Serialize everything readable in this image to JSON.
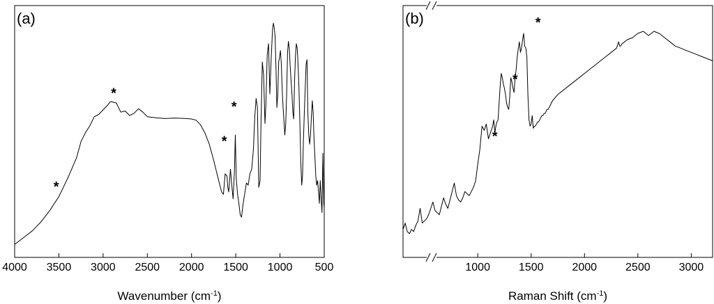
{
  "chart_data": [
    {
      "type": "line",
      "panel_label": "(a)",
      "xlabel_main": "Wavenumber (cm",
      "xlabel_sup": "-1",
      "xlabel_end": ")",
      "ylabel": "",
      "xlim": [
        4000,
        500
      ],
      "ylim": [
        0,
        1
      ],
      "x_reversed": true,
      "yaxis_ticks": false,
      "x_ticks": [
        4000,
        3500,
        3000,
        2500,
        2000,
        1500,
        1000,
        500
      ],
      "x_tick_labels": [
        "4000",
        "3500",
        "3000",
        "2500",
        "2000",
        "1500",
        "1000",
        "500"
      ],
      "grid": false,
      "series": [
        {
          "x": [
            4000,
            3900,
            3800,
            3700,
            3600,
            3500,
            3400,
            3300,
            3250,
            3200,
            3150,
            3100,
            3050,
            3000,
            2950,
            2920,
            2900,
            2850,
            2800,
            2750,
            2700,
            2650,
            2600,
            2550,
            2500,
            2400,
            2300,
            2200,
            2100,
            2000,
            1950,
            1900,
            1850,
            1800,
            1750,
            1700,
            1660,
            1640,
            1620,
            1600,
            1590,
            1580,
            1560,
            1545,
            1530,
            1515,
            1505,
            1495,
            1480,
            1465,
            1450,
            1435,
            1420,
            1400,
            1380,
            1360,
            1340,
            1320,
            1300,
            1285,
            1270,
            1255,
            1240,
            1225,
            1215,
            1200,
            1185,
            1170,
            1160,
            1145,
            1130,
            1115,
            1100,
            1085,
            1075,
            1065,
            1055,
            1045,
            1035,
            1025,
            1015,
            1005,
            995,
            985,
            975,
            965,
            955,
            945,
            935,
            925,
            915,
            905,
            895,
            885,
            875,
            865,
            855,
            845,
            835,
            825,
            815,
            805,
            795,
            785,
            775,
            765,
            755,
            745,
            735,
            725,
            715,
            705,
            695,
            685,
            675,
            665,
            655,
            645,
            635,
            625,
            615,
            605,
            595,
            585,
            575,
            565,
            555,
            545,
            535,
            525,
            515,
            505,
            500
          ],
          "y": [
            0.02,
            0.05,
            0.08,
            0.12,
            0.17,
            0.23,
            0.31,
            0.4,
            0.47,
            0.51,
            0.54,
            0.58,
            0.59,
            0.61,
            0.63,
            0.645,
            0.645,
            0.64,
            0.6,
            0.605,
            0.585,
            0.595,
            0.615,
            0.6,
            0.58,
            0.575,
            0.572,
            0.574,
            0.573,
            0.57,
            0.565,
            0.545,
            0.51,
            0.46,
            0.39,
            0.31,
            0.25,
            0.24,
            0.33,
            0.32,
            0.27,
            0.25,
            0.35,
            0.28,
            0.22,
            0.34,
            0.5,
            0.31,
            0.24,
            0.2,
            0.15,
            0.14,
            0.19,
            0.24,
            0.29,
            0.28,
            0.33,
            0.35,
            0.44,
            0.58,
            0.66,
            0.62,
            0.27,
            0.3,
            0.55,
            0.82,
            0.76,
            0.55,
            0.63,
            0.85,
            0.9,
            0.68,
            0.83,
            0.96,
            0.99,
            0.97,
            0.93,
            0.78,
            0.62,
            0.68,
            0.82,
            0.84,
            0.87,
            0.81,
            0.7,
            0.62,
            0.56,
            0.5,
            0.55,
            0.68,
            0.86,
            0.91,
            0.88,
            0.8,
            0.74,
            0.68,
            0.6,
            0.57,
            0.74,
            0.85,
            0.9,
            0.88,
            0.8,
            0.7,
            0.55,
            0.38,
            0.28,
            0.32,
            0.48,
            0.6,
            0.7,
            0.81,
            0.83,
            0.6,
            0.5,
            0.46,
            0.5,
            0.58,
            0.65,
            0.6,
            0.48,
            0.4,
            0.32,
            0.28,
            0.3,
            0.25,
            0.2,
            0.3,
            0.22,
            0.16,
            0.42,
            0.2,
            0.18
          ]
        }
      ],
      "annotations": [
        {
          "text": "*",
          "x": 3530,
          "y": 0.29
        },
        {
          "text": "*",
          "x": 2880,
          "y": 0.7
        },
        {
          "text": "*",
          "x": 1630,
          "y": 0.49
        },
        {
          "text": "*",
          "x": 1520,
          "y": 0.64
        }
      ]
    },
    {
      "type": "line",
      "panel_label": "(b)",
      "xlabel_main": "Raman Shift (cm",
      "xlabel_sup": "-1",
      "xlabel_end": ")",
      "ylabel": "",
      "xlim": [
        300,
        3200
      ],
      "ylim": [
        0,
        1
      ],
      "axis_break": true,
      "yaxis_ticks": false,
      "x_ticks": [
        1000,
        1500,
        2000,
        2500,
        3000
      ],
      "x_tick_labels": [
        "1000",
        "1500",
        "2000",
        "2500",
        "3000"
      ],
      "grid": false,
      "series": [
        {
          "x": [
            300,
            320,
            340,
            360,
            380,
            400,
            420,
            440,
            460,
            480,
            500,
            520,
            540,
            560,
            580,
            600,
            620,
            640,
            660,
            680,
            700,
            720,
            740,
            760,
            780,
            800,
            820,
            840,
            860,
            880,
            900,
            920,
            940,
            960,
            980,
            1000,
            1020,
            1040,
            1060,
            1080,
            1100,
            1120,
            1140,
            1150,
            1160,
            1170,
            1180,
            1190,
            1200,
            1210,
            1220,
            1230,
            1240,
            1250,
            1260,
            1270,
            1280,
            1290,
            1300,
            1310,
            1320,
            1330,
            1340,
            1350,
            1360,
            1370,
            1380,
            1390,
            1400,
            1410,
            1420,
            1430,
            1440,
            1450,
            1460,
            1470,
            1480,
            1490,
            1500,
            1510,
            1520,
            1530,
            1540,
            1550,
            1560,
            1570,
            1580,
            1590,
            1600,
            1610,
            1620,
            1630,
            1640,
            1650,
            1660,
            1670,
            1680,
            1690,
            1700,
            1750,
            1800,
            1850,
            1900,
            1950,
            2000,
            2050,
            2100,
            2150,
            2200,
            2250,
            2300,
            2320,
            2330,
            2340,
            2350,
            2400,
            2450,
            2500,
            2550,
            2600,
            2650,
            2700,
            2750,
            2800,
            2850,
            2900,
            2950,
            3000,
            3050,
            3100,
            3150,
            3200
          ],
          "y": [
            0.06,
            0.09,
            0.05,
            0.04,
            0.06,
            0.05,
            0.08,
            0.1,
            0.16,
            0.09,
            0.1,
            0.11,
            0.13,
            0.16,
            0.19,
            0.15,
            0.14,
            0.13,
            0.17,
            0.21,
            0.18,
            0.16,
            0.2,
            0.24,
            0.28,
            0.22,
            0.2,
            0.19,
            0.21,
            0.24,
            0.23,
            0.22,
            0.24,
            0.26,
            0.29,
            0.37,
            0.44,
            0.55,
            0.53,
            0.56,
            0.49,
            0.52,
            0.55,
            0.58,
            0.52,
            0.55,
            0.57,
            0.58,
            0.66,
            0.74,
            0.8,
            0.78,
            0.75,
            0.73,
            0.7,
            0.66,
            0.64,
            0.63,
            0.69,
            0.78,
            0.76,
            0.73,
            0.71,
            0.78,
            0.82,
            0.88,
            0.92,
            0.95,
            0.9,
            0.92,
            0.96,
            0.99,
            0.93,
            0.92,
            0.88,
            0.7,
            0.58,
            0.55,
            0.56,
            0.6,
            0.54,
            0.55,
            0.55,
            0.56,
            0.57,
            0.57,
            0.58,
            0.59,
            0.6,
            0.6,
            0.61,
            0.61,
            0.62,
            0.63,
            0.63,
            0.64,
            0.65,
            0.66,
            0.67,
            0.7,
            0.72,
            0.74,
            0.76,
            0.78,
            0.8,
            0.82,
            0.84,
            0.86,
            0.88,
            0.9,
            0.92,
            0.95,
            0.93,
            0.93,
            0.94,
            0.96,
            0.97,
            0.99,
            1.0,
            0.98,
            1.0,
            0.99,
            0.97,
            0.95,
            0.93,
            0.92,
            0.91,
            0.9,
            0.89,
            0.88,
            0.87,
            0.86
          ],
          "mapped_note": ""
        }
      ],
      "annotations": [
        {
          "text": "*",
          "x": 1160,
          "y": 0.52
        },
        {
          "text": "*",
          "x": 1350,
          "y": 0.79
        },
        {
          "text": "*",
          "x": 1565,
          "y": 1.06
        }
      ]
    }
  ]
}
